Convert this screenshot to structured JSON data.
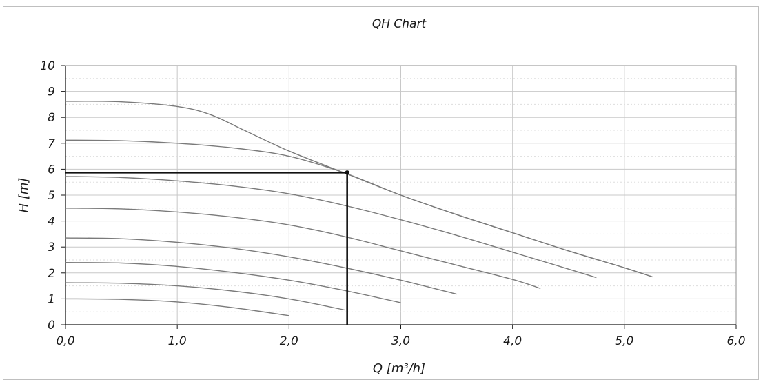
{
  "chart_data": {
    "type": "line",
    "title": "QH Chart",
    "xlabel": "Q [m³/h]",
    "ylabel": "H [m]",
    "xlim": [
      0,
      6
    ],
    "ylim": [
      0,
      10
    ],
    "x_ticks": [
      "0,0",
      "1,0",
      "2,0",
      "3,0",
      "4,0",
      "5,0",
      "6,0"
    ],
    "y_ticks": [
      "0",
      "1",
      "2",
      "3",
      "4",
      "5",
      "6",
      "7",
      "8",
      "9",
      "10"
    ],
    "grid": true,
    "series": [
      {
        "x": [
          0,
          0.5,
          1.0,
          1.3,
          1.6,
          2.0,
          2.5,
          3.0,
          3.5,
          4.0,
          4.5,
          5.0,
          5.25
        ],
        "values": [
          8.62,
          8.6,
          8.42,
          8.1,
          7.5,
          6.7,
          5.85,
          5.0,
          4.25,
          3.55,
          2.85,
          2.2,
          1.85
        ]
      },
      {
        "x": [
          0,
          0.5,
          1.0,
          1.5,
          2.0,
          2.5,
          3.0,
          3.5,
          4.0,
          4.5,
          5.0,
          5.25
        ],
        "values": [
          7.12,
          7.1,
          7.0,
          6.82,
          6.5,
          5.85,
          5.0,
          4.25,
          3.55,
          2.85,
          2.2,
          1.85
        ]
      },
      {
        "x": [
          0,
          0.5,
          1.0,
          1.5,
          2.0,
          2.5,
          3.0,
          3.5,
          4.0,
          4.5,
          4.75
        ],
        "values": [
          5.72,
          5.68,
          5.55,
          5.35,
          5.05,
          4.6,
          4.05,
          3.45,
          2.8,
          2.15,
          1.82
        ]
      },
      {
        "x": [
          0,
          0.5,
          1.0,
          1.5,
          2.0,
          2.5,
          3.0,
          3.5,
          4.0,
          4.25
        ],
        "values": [
          4.5,
          4.47,
          4.35,
          4.15,
          3.85,
          3.4,
          2.85,
          2.3,
          1.75,
          1.4
        ]
      },
      {
        "x": [
          0,
          0.5,
          1.0,
          1.5,
          2.0,
          2.5,
          3.0,
          3.5
        ],
        "values": [
          3.35,
          3.32,
          3.18,
          2.95,
          2.62,
          2.2,
          1.72,
          1.18
        ]
      },
      {
        "x": [
          0,
          0.5,
          1.0,
          1.5,
          2.0,
          2.5,
          3.0
        ],
        "values": [
          2.4,
          2.38,
          2.25,
          2.02,
          1.72,
          1.32,
          0.85
        ]
      },
      {
        "x": [
          0,
          0.5,
          1.0,
          1.5,
          2.0,
          2.5
        ],
        "values": [
          1.62,
          1.6,
          1.5,
          1.3,
          1.0,
          0.57
        ]
      },
      {
        "x": [
          0,
          0.5,
          1.0,
          1.5,
          2.0
        ],
        "values": [
          1.0,
          0.98,
          0.88,
          0.66,
          0.35
        ]
      }
    ],
    "operating_point": {
      "x": 2.52,
      "y": 5.87
    }
  }
}
